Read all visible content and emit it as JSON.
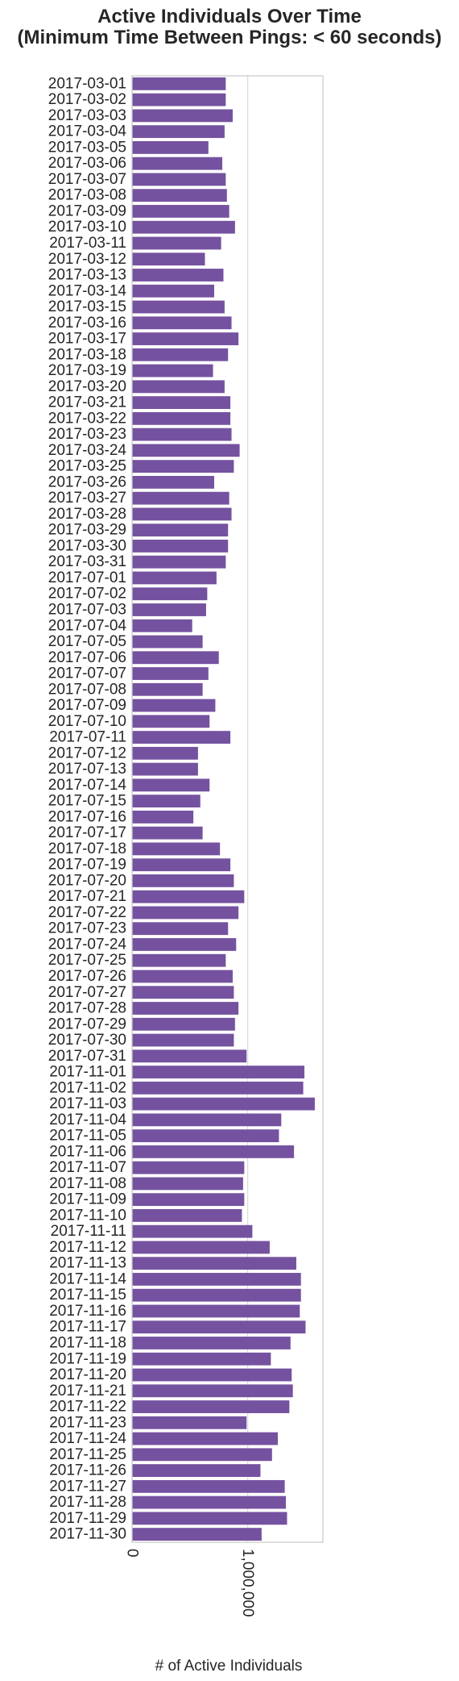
{
  "chart_data": {
    "type": "bar",
    "orientation": "horizontal",
    "title_lines": [
      "Active Individuals Over Time",
      "(Minimum Time Between Pings: < 60 seconds)"
    ],
    "xlabel": "# of Active Individuals",
    "ylabel": "",
    "xlim": [
      0,
      1650000
    ],
    "xticks": [
      0,
      1000000
    ],
    "xtick_labels": [
      "0",
      "1,000,000"
    ],
    "grid": "vertical gridlines on",
    "bar_color": "#7552a0",
    "categories": [
      "2017-03-01",
      "2017-03-02",
      "2017-03-03",
      "2017-03-04",
      "2017-03-05",
      "2017-03-06",
      "2017-03-07",
      "2017-03-08",
      "2017-03-09",
      "2017-03-10",
      "2017-03-11",
      "2017-03-12",
      "2017-03-13",
      "2017-03-14",
      "2017-03-15",
      "2017-03-16",
      "2017-03-17",
      "2017-03-18",
      "2017-03-19",
      "2017-03-20",
      "2017-03-21",
      "2017-03-22",
      "2017-03-23",
      "2017-03-24",
      "2017-03-25",
      "2017-03-26",
      "2017-03-27",
      "2017-03-28",
      "2017-03-29",
      "2017-03-30",
      "2017-03-31",
      "2017-07-01",
      "2017-07-02",
      "2017-07-03",
      "2017-07-04",
      "2017-07-05",
      "2017-07-06",
      "2017-07-07",
      "2017-07-08",
      "2017-07-09",
      "2017-07-10",
      "2017-07-11",
      "2017-07-12",
      "2017-07-13",
      "2017-07-14",
      "2017-07-15",
      "2017-07-16",
      "2017-07-17",
      "2017-07-18",
      "2017-07-19",
      "2017-07-20",
      "2017-07-21",
      "2017-07-22",
      "2017-07-23",
      "2017-07-24",
      "2017-07-25",
      "2017-07-26",
      "2017-07-27",
      "2017-07-28",
      "2017-07-29",
      "2017-07-30",
      "2017-07-31",
      "2017-11-01",
      "2017-11-02",
      "2017-11-03",
      "2017-11-04",
      "2017-11-05",
      "2017-11-06",
      "2017-11-07",
      "2017-11-08",
      "2017-11-09",
      "2017-11-10",
      "2017-11-11",
      "2017-11-12",
      "2017-11-13",
      "2017-11-14",
      "2017-11-15",
      "2017-11-16",
      "2017-11-17",
      "2017-11-18",
      "2017-11-19",
      "2017-11-20",
      "2017-11-21",
      "2017-11-22",
      "2017-11-23",
      "2017-11-24",
      "2017-11-25",
      "2017-11-26",
      "2017-11-27",
      "2017-11-28",
      "2017-11-29",
      "2017-11-30"
    ],
    "values": [
      810000,
      810000,
      870000,
      800000,
      660000,
      780000,
      810000,
      820000,
      840000,
      890000,
      770000,
      630000,
      790000,
      710000,
      800000,
      860000,
      920000,
      830000,
      700000,
      800000,
      850000,
      850000,
      860000,
      930000,
      880000,
      710000,
      840000,
      860000,
      830000,
      830000,
      810000,
      730000,
      650000,
      640000,
      520000,
      610000,
      750000,
      660000,
      610000,
      720000,
      670000,
      850000,
      570000,
      570000,
      670000,
      590000,
      530000,
      610000,
      760000,
      850000,
      880000,
      970000,
      920000,
      830000,
      900000,
      810000,
      870000,
      880000,
      920000,
      890000,
      880000,
      990000,
      1490000,
      1480000,
      1580000,
      1290000,
      1270000,
      1400000,
      970000,
      960000,
      970000,
      950000,
      1040000,
      1190000,
      1420000,
      1460000,
      1460000,
      1450000,
      1500000,
      1370000,
      1200000,
      1380000,
      1390000,
      1360000,
      990000,
      1260000,
      1210000,
      1110000,
      1320000,
      1330000,
      1340000,
      1120000
    ]
  }
}
